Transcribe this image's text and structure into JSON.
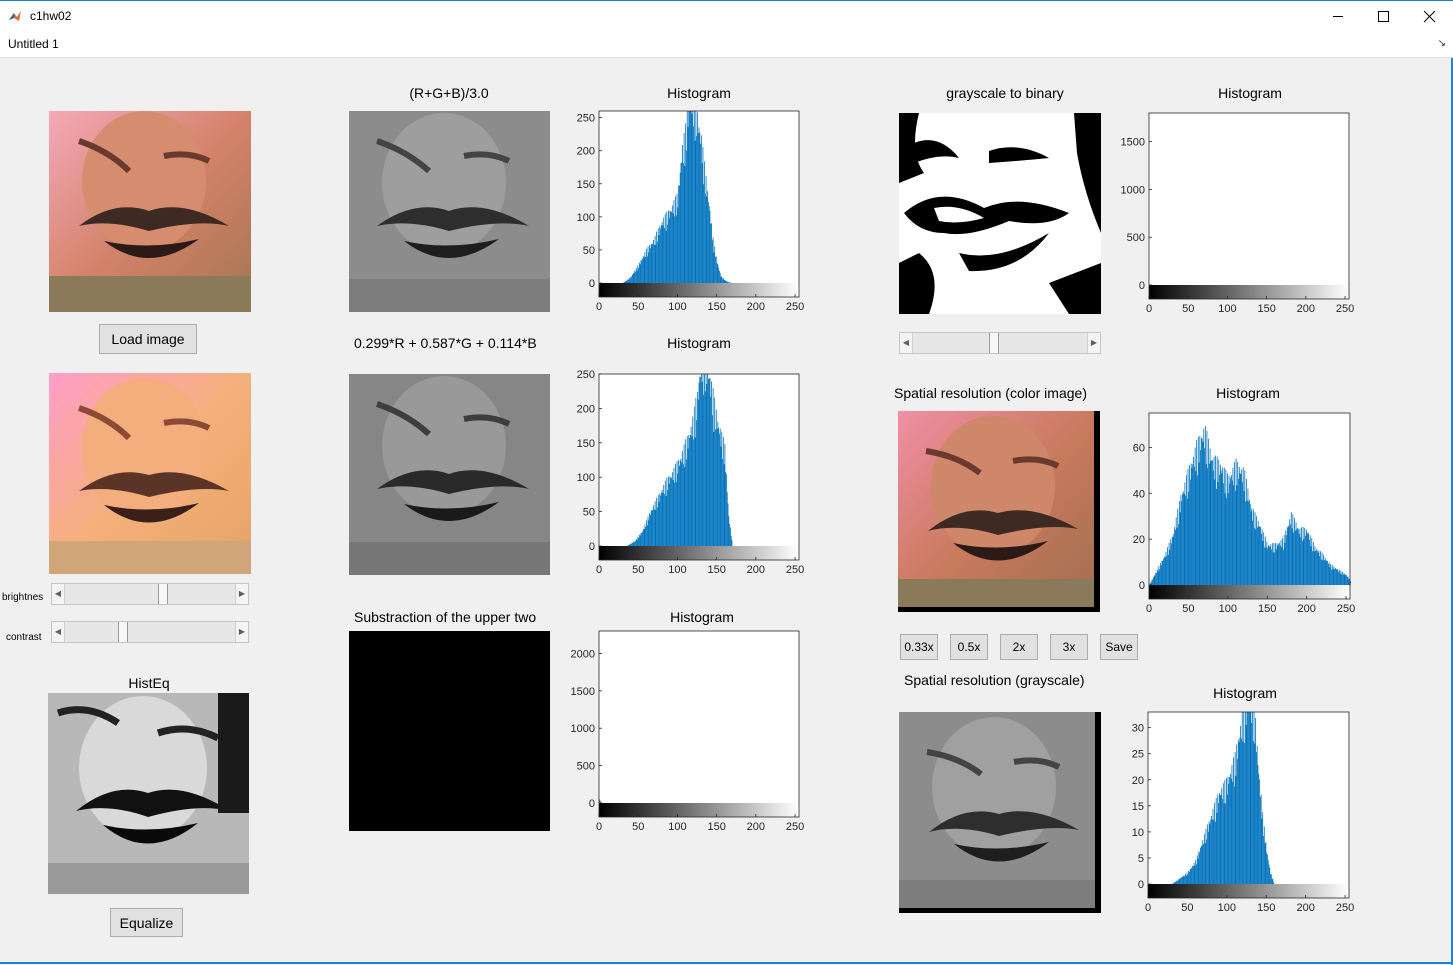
{
  "window": {
    "title": "c1hw02"
  },
  "menu": {
    "item": "Untitled 1"
  },
  "icons": {
    "app": "matlab-icon",
    "minimize": "minimize-icon",
    "maximize": "maximize-icon",
    "close": "close-icon"
  },
  "buttons": {
    "load": "Load image",
    "equalize": "Equalize",
    "scale_033": "0.33x",
    "scale_05": "0.5x",
    "scale_2": "2x",
    "scale_3": "3x",
    "save": "Save"
  },
  "sliders": {
    "brightness": {
      "label": "brightnes",
      "value_fraction": 0.6
    },
    "contrast": {
      "label": "contrast",
      "value_fraction": 0.35
    },
    "binary": {
      "value_fraction": 0.47
    }
  },
  "titles": {
    "avg": "(R+G+B)/3.0",
    "hist1": "Histogram",
    "weighted": "0.299*R + 0.587*G + 0.114*B",
    "hist2": "Histogram",
    "subtraction": "Substraction of the upper two",
    "hist3": "Histogram",
    "histeq": "HistEq",
    "binary": "grayscale to binary",
    "hist4": "Histogram",
    "spatial_color": "Spatial resolution (color image)",
    "hist5": "Histogram",
    "spatial_gray": "Spatial resolution (grayscale)",
    "hist6": "Histogram"
  },
  "chart_data": [
    {
      "type": "bar",
      "title": "Histogram",
      "xlim": [
        0,
        255
      ],
      "ylim": [
        0,
        260
      ],
      "x_ticks": [
        "0",
        "50",
        "100",
        "150",
        "200",
        "250"
      ],
      "y_ticks": [
        "0",
        "50",
        "100",
        "150",
        "200",
        "250"
      ],
      "y_tick_values": [
        0,
        50,
        100,
        150,
        200,
        250
      ],
      "series": [
        {
          "x": [
            30,
            40,
            50,
            60,
            70,
            80,
            90,
            100,
            105,
            110,
            115,
            120,
            125,
            130,
            135,
            140,
            145,
            150,
            155,
            160,
            165,
            170
          ],
          "values": [
            0,
            8,
            25,
            45,
            60,
            85,
            100,
            120,
            180,
            210,
            260,
            260,
            230,
            200,
            150,
            110,
            60,
            30,
            10,
            4,
            1,
            0
          ]
        }
      ]
    },
    {
      "type": "bar",
      "title": "Histogram",
      "xlim": [
        0,
        255
      ],
      "ylim": [
        0,
        250
      ],
      "x_ticks": [
        "0",
        "50",
        "100",
        "150",
        "200",
        "250"
      ],
      "y_ticks": [
        "0",
        "50",
        "100",
        "150",
        "200",
        "250"
      ],
      "y_tick_values": [
        0,
        50,
        100,
        150,
        200,
        250
      ],
      "series": [
        {
          "x": [
            35,
            45,
            55,
            65,
            75,
            85,
            95,
            105,
            115,
            120,
            125,
            130,
            135,
            140,
            145,
            150,
            155,
            160,
            165,
            170
          ],
          "values": [
            0,
            6,
            20,
            45,
            65,
            85,
            100,
            120,
            150,
            170,
            200,
            250,
            250,
            230,
            200,
            170,
            150,
            130,
            40,
            0
          ]
        }
      ]
    },
    {
      "type": "bar",
      "title": "Histogram",
      "xlim": [
        0,
        255
      ],
      "ylim": [
        0,
        2300
      ],
      "x_ticks": [
        "0",
        "50",
        "100",
        "150",
        "200",
        "250"
      ],
      "y_ticks": [
        "0",
        "500",
        "1000",
        "1500",
        "2000"
      ],
      "y_tick_values": [
        0,
        500,
        1000,
        1500,
        2000
      ],
      "series": [
        {
          "x": [
            0,
            1,
            2,
            3,
            4
          ],
          "values": [
            60,
            30,
            12,
            5,
            0
          ]
        }
      ]
    },
    {
      "type": "bar",
      "title": "Histogram",
      "xlim": [
        0,
        255
      ],
      "ylim": [
        0,
        1800
      ],
      "x_ticks": [
        "0",
        "50",
        "100",
        "150",
        "200",
        "250"
      ],
      "y_ticks": [
        "0",
        "500",
        "1000",
        "1500"
      ],
      "y_tick_values": [
        0,
        500,
        1000,
        1500
      ],
      "series": [
        {
          "x": [
            0,
            255
          ],
          "values": [
            0,
            0
          ]
        }
      ]
    },
    {
      "type": "bar",
      "title": "Histogram",
      "xlim": [
        0,
        255
      ],
      "ylim": [
        0,
        75
      ],
      "x_ticks": [
        "0",
        "50",
        "100",
        "150",
        "200",
        "250"
      ],
      "y_ticks": [
        "0",
        "20",
        "40",
        "60"
      ],
      "y_tick_values": [
        0,
        20,
        40,
        60
      ],
      "series": [
        {
          "x": [
            0,
            10,
            20,
            30,
            40,
            50,
            60,
            70,
            80,
            90,
            100,
            110,
            120,
            130,
            140,
            150,
            160,
            170,
            180,
            190,
            200,
            210,
            220,
            230,
            240,
            250,
            255
          ],
          "values": [
            0,
            6,
            12,
            20,
            35,
            45,
            55,
            62,
            50,
            48,
            42,
            48,
            45,
            30,
            24,
            16,
            16,
            18,
            28,
            22,
            22,
            15,
            12,
            8,
            6,
            4,
            2
          ]
        }
      ]
    },
    {
      "type": "bar",
      "title": "Histogram",
      "xlim": [
        0,
        255
      ],
      "ylim": [
        0,
        33
      ],
      "x_ticks": [
        "0",
        "50",
        "100",
        "150",
        "200",
        "250"
      ],
      "y_ticks": [
        "0",
        "5",
        "10",
        "15",
        "20",
        "25",
        "30"
      ],
      "y_tick_values": [
        0,
        5,
        10,
        15,
        20,
        25,
        30
      ],
      "series": [
        {
          "x": [
            30,
            40,
            50,
            60,
            70,
            80,
            90,
            100,
            110,
            120,
            125,
            130,
            135,
            140,
            145,
            150,
            155,
            160
          ],
          "values": [
            0,
            1,
            2,
            4,
            8,
            12,
            16,
            18,
            22,
            30,
            33,
            33,
            30,
            20,
            12,
            6,
            2,
            0
          ]
        }
      ]
    }
  ]
}
